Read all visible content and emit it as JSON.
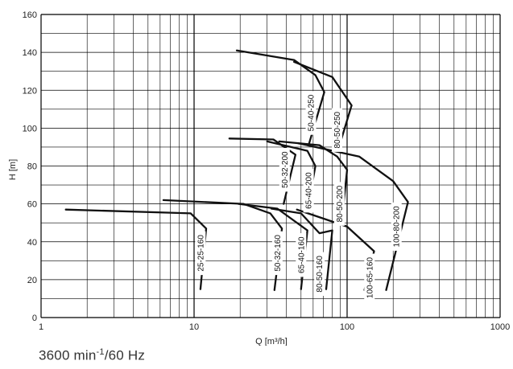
{
  "footer": {
    "prefix": "3600 min",
    "exponent": "-1",
    "suffix": "/60 Hz"
  },
  "chart_data": {
    "type": "line",
    "xlabel": "Q [m³/h]",
    "ylabel": "H [m]",
    "x_scale": "log",
    "xlim": [
      1,
      1000
    ],
    "ylim": [
      0,
      160
    ],
    "x_ticks": [
      "1",
      "10",
      "100",
      "1000"
    ],
    "y_ticks": [
      "0",
      "20",
      "40",
      "60",
      "80",
      "100",
      "120",
      "140",
      "160"
    ],
    "grid": true,
    "series": [
      {
        "name": "25-25-160",
        "points": [
          [
            1.45,
            57
          ],
          [
            9.5,
            55
          ],
          [
            12,
            47
          ],
          [
            11,
            15
          ]
        ],
        "label_at": [
          11,
          34
        ]
      },
      {
        "name": "50-32-160",
        "points": [
          [
            6.3,
            62
          ],
          [
            21,
            60
          ],
          [
            31.5,
            55
          ],
          [
            37.5,
            47
          ],
          [
            33.5,
            14.5
          ]
        ],
        "label_at": [
          35,
          34
        ]
      },
      {
        "name": "65-40-160",
        "points": [
          [
            19.5,
            60
          ],
          [
            35,
            57.5
          ],
          [
            55,
            46
          ],
          [
            50,
            15
          ]
        ],
        "label_at": [
          50,
          33
        ]
      },
      {
        "name": "80-50-160",
        "points": [
          [
            32,
            57.5
          ],
          [
            50,
            55
          ],
          [
            66,
            44.5
          ],
          [
            80,
            46
          ],
          [
            73,
            15
          ]
        ],
        "label_at": [
          66,
          23
        ]
      },
      {
        "name": "100-65-160",
        "points": [
          [
            47,
            57
          ],
          [
            100,
            48
          ],
          [
            150,
            35
          ],
          [
            130,
            14.5
          ]
        ],
        "label_at": [
          140,
          21
        ]
      },
      {
        "name": "50-32-200",
        "points": [
          [
            17,
            94.5
          ],
          [
            33,
            94
          ],
          [
            46,
            86
          ],
          [
            38.5,
            60
          ]
        ],
        "label_at": [
          39,
          78
        ]
      },
      {
        "name": "65-40-200",
        "points": [
          [
            30,
            93
          ],
          [
            55,
            88
          ],
          [
            62,
            80
          ],
          [
            56,
            60
          ]
        ],
        "label_at": [
          56,
          67
        ]
      },
      {
        "name": "80-50-200",
        "points": [
          [
            36,
            93
          ],
          [
            66,
            91
          ],
          [
            86,
            85
          ],
          [
            100,
            78
          ],
          [
            92,
            50
          ]
        ],
        "label_at": [
          89,
          60
        ]
      },
      {
        "name": "100-80-200",
        "points": [
          [
            48,
            92
          ],
          [
            120,
            85
          ],
          [
            200,
            72
          ],
          [
            250,
            61
          ],
          [
            180,
            14.5
          ]
        ],
        "label_at": [
          210,
          48
        ]
      },
      {
        "name": "50-40-250",
        "points": [
          [
            19,
            141
          ],
          [
            45,
            136
          ],
          [
            62,
            128
          ],
          [
            71,
            119
          ],
          [
            56,
            91
          ]
        ],
        "label_at": [
          58,
          108
        ]
      },
      {
        "name": "80-50-250",
        "points": [
          [
            45,
            135
          ],
          [
            80,
            127
          ],
          [
            107,
            112
          ],
          [
            87,
            88
          ]
        ],
        "label_at": [
          86,
          99
        ]
      }
    ]
  }
}
